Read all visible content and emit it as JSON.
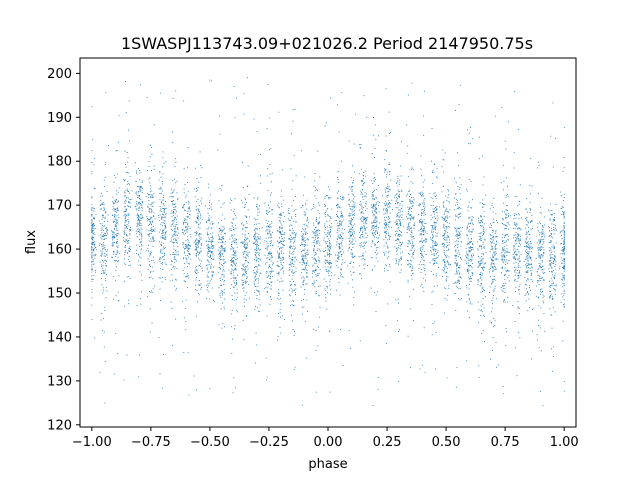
{
  "chart_data": {
    "type": "scatter",
    "title": "1SWASPJ113743.09+021026.2 Period 2147950.75s",
    "xlabel": "phase",
    "ylabel": "flux",
    "xlim": [
      -1.05,
      1.05
    ],
    "ylim": [
      119.5,
      203.5
    ],
    "xticks": [
      -1.0,
      -0.75,
      -0.5,
      -0.25,
      0.0,
      0.25,
      0.5,
      0.75,
      1.0
    ],
    "xtick_labels": [
      "−1.00",
      "−0.75",
      "−0.50",
      "−0.25",
      "0.00",
      "0.25",
      "0.50",
      "0.75",
      "1.00"
    ],
    "yticks": [
      120,
      130,
      140,
      150,
      160,
      170,
      180,
      190,
      200
    ],
    "ytick_labels": [
      "120",
      "130",
      "140",
      "150",
      "160",
      "170",
      "180",
      "190",
      "200"
    ],
    "grid": false,
    "legend": "none",
    "marker_color": "#1f77b4",
    "phase_range": [
      -1.0,
      1.0
    ],
    "stripe_count": 41,
    "flux_core_range": [
      148,
      178
    ],
    "flux_scatter_range": [
      124,
      200
    ],
    "median_flux": 162,
    "series": [
      {
        "x": [
          -1.0,
          -0.95,
          -0.9,
          -0.85,
          -0.8,
          -0.75,
          -0.7,
          -0.65,
          -0.6,
          -0.55,
          -0.5,
          -0.45,
          -0.4,
          -0.35,
          -0.3,
          -0.25,
          -0.2,
          -0.15,
          -0.1,
          -0.05,
          0.0,
          0.05,
          0.1,
          0.15,
          0.2,
          0.25,
          0.3,
          0.35,
          0.4,
          0.45,
          0.5,
          0.55,
          0.6,
          0.65,
          0.7,
          0.75,
          0.8,
          0.85,
          0.9,
          0.95,
          1.0
        ],
        "center": [
          162,
          163,
          165,
          166,
          167,
          166,
          165,
          164,
          163,
          162,
          160,
          159,
          158,
          158,
          159,
          160,
          160,
          159,
          159,
          160,
          161,
          163,
          165,
          166,
          167,
          167,
          166,
          165,
          164,
          163,
          162,
          161,
          160,
          159,
          159,
          160,
          160,
          159,
          158,
          158,
          159
        ],
        "spread": [
          10,
          11,
          10,
          11,
          10,
          11,
          10,
          11,
          10,
          11,
          10,
          11,
          10,
          11,
          10,
          11,
          10,
          11,
          10,
          11,
          10,
          11,
          10,
          11,
          10,
          11,
          10,
          11,
          10,
          11,
          10,
          11,
          10,
          11,
          10,
          11,
          10,
          11,
          10,
          11,
          10
        ]
      }
    ]
  }
}
